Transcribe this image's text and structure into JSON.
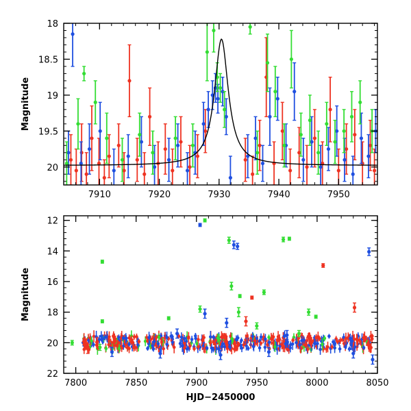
{
  "chart_data": [
    {
      "type": "scatter",
      "title": "",
      "xlabel": "",
      "ylabel": "Magnitude",
      "xlim": [
        7904,
        7956.5
      ],
      "ylim": [
        20.25,
        18.0
      ],
      "y_inverted": true,
      "grid": false,
      "x_ticks": [
        7910,
        7920,
        7930,
        7940,
        7950
      ],
      "y_ticks": [
        18,
        18.5,
        19,
        19.5,
        20
      ],
      "tick_labels_x": [
        "7910",
        "7920",
        "7930",
        "7940",
        "7950"
      ],
      "tick_labels_y": [
        "18",
        "18.5",
        "19",
        "19.5",
        "20"
      ],
      "series": [
        {
          "color": "#ee3322",
          "points": [
            [
              7905.2,
              19.9,
              0.35
            ],
            [
              7906.1,
              20.05,
              0.3
            ],
            [
              7907.0,
              19.8,
              0.4
            ],
            [
              7907.8,
              20.1,
              0.3
            ],
            [
              7908.7,
              19.6,
              0.45
            ],
            [
              7909.9,
              19.95,
              0.35
            ],
            [
              7910.8,
              20.15,
              0.25
            ],
            [
              7911.6,
              19.85,
              0.3
            ],
            [
              7913.2,
              19.7,
              0.3
            ],
            [
              7914.1,
              20.05,
              0.25
            ],
            [
              7915.0,
              18.8,
              0.5
            ],
            [
              7916.3,
              19.9,
              0.3
            ],
            [
              7917.5,
              20.1,
              0.3
            ],
            [
              7918.4,
              19.3,
              0.4
            ],
            [
              7919.8,
              19.95,
              0.3
            ],
            [
              7921.0,
              19.75,
              0.35
            ],
            [
              7922.2,
              20.05,
              0.3
            ],
            [
              7923.6,
              19.65,
              0.35
            ],
            [
              7925.1,
              20.0,
              0.3
            ],
            [
              7926.4,
              19.85,
              0.3
            ],
            [
              7927.7,
              19.5,
              0.3
            ],
            [
              7934.4,
              19.9,
              0.3
            ],
            [
              7935.6,
              20.1,
              0.25
            ],
            [
              7936.8,
              19.7,
              0.35
            ],
            [
              7937.9,
              18.75,
              0.55
            ],
            [
              7939.2,
              19.95,
              0.3
            ],
            [
              7940.6,
              19.5,
              0.4
            ],
            [
              7941.9,
              20.05,
              0.3
            ],
            [
              7943.4,
              19.8,
              0.35
            ],
            [
              7944.7,
              20.0,
              0.3
            ],
            [
              7946.0,
              19.6,
              0.4
            ],
            [
              7947.3,
              19.95,
              0.3
            ],
            [
              7948.6,
              19.2,
              0.45
            ],
            [
              7950.0,
              20.05,
              0.3
            ],
            [
              7951.3,
              19.75,
              0.35
            ],
            [
              7952.7,
              19.55,
              0.35
            ],
            [
              7954.0,
              19.95,
              0.3
            ],
            [
              7955.3,
              19.7,
              0.35
            ],
            [
              7956.0,
              20.05,
              0.3
            ]
          ]
        },
        {
          "color": "#1f4fe0",
          "points": [
            [
              7904.8,
              19.8,
              0.3
            ],
            [
              7905.5,
              18.15,
              0.45
            ],
            [
              7906.9,
              19.95,
              0.3
            ],
            [
              7908.3,
              19.75,
              0.35
            ],
            [
              7910.1,
              19.5,
              0.4
            ],
            [
              7912.4,
              20.05,
              0.3
            ],
            [
              7914.8,
              19.85,
              0.3
            ],
            [
              7917.0,
              19.65,
              0.35
            ],
            [
              7919.2,
              20.0,
              0.3
            ],
            [
              7921.6,
              19.9,
              0.3
            ],
            [
              7923.1,
              19.7,
              0.3
            ],
            [
              7924.7,
              20.05,
              0.25
            ],
            [
              7926.0,
              19.8,
              0.3
            ],
            [
              7927.4,
              19.4,
              0.3
            ],
            [
              7928.2,
              19.2,
              0.25
            ],
            [
              7928.9,
              19.0,
              0.2
            ],
            [
              7929.4,
              18.9,
              0.2
            ],
            [
              7929.8,
              19.05,
              0.2
            ],
            [
              7930.6,
              18.95,
              0.2
            ],
            [
              7931.2,
              19.3,
              0.25
            ],
            [
              7931.9,
              20.15,
              0.3
            ],
            [
              7934.8,
              19.85,
              0.3
            ],
            [
              7936.1,
              19.6,
              0.3
            ],
            [
              7937.3,
              19.95,
              0.25
            ],
            [
              7938.5,
              19.3,
              0.4
            ],
            [
              7939.8,
              19.05,
              0.3
            ],
            [
              7941.2,
              19.7,
              0.3
            ],
            [
              7942.6,
              18.95,
              0.4
            ],
            [
              7944.1,
              19.9,
              0.3
            ],
            [
              7945.5,
              19.65,
              0.35
            ],
            [
              7947.0,
              20.0,
              0.3
            ],
            [
              7948.3,
              19.75,
              0.3
            ],
            [
              7949.7,
              19.5,
              0.35
            ],
            [
              7951.0,
              19.9,
              0.3
            ],
            [
              7952.4,
              20.1,
              0.25
            ],
            [
              7953.8,
              19.6,
              0.35
            ],
            [
              7955.0,
              19.85,
              0.3
            ],
            [
              7956.2,
              19.5,
              0.3
            ]
          ]
        },
        {
          "color": "#33dd33",
          "points": [
            [
              7904.5,
              19.95,
              0.3
            ],
            [
              7906.4,
              19.4,
              0.35
            ],
            [
              7907.4,
              18.7,
              0.1
            ],
            [
              7909.3,
              19.1,
              0.3
            ],
            [
              7911.2,
              19.6,
              0.35
            ],
            [
              7913.8,
              19.9,
              0.3
            ],
            [
              7916.7,
              19.55,
              0.3
            ],
            [
              7918.9,
              19.8,
              0.3
            ],
            [
              7922.7,
              19.6,
              0.3
            ],
            [
              7925.6,
              19.7,
              0.3
            ],
            [
              7928.0,
              18.4,
              0.4
            ],
            [
              7929.1,
              18.1,
              0.3
            ],
            [
              7929.7,
              18.75,
              0.2
            ],
            [
              7930.2,
              18.9,
              0.2
            ],
            [
              7930.9,
              19.2,
              0.25
            ],
            [
              7935.2,
              18.05,
              0.1
            ],
            [
              7936.4,
              19.8,
              0.3
            ],
            [
              7938.1,
              18.55,
              0.4
            ],
            [
              7939.4,
              18.95,
              0.35
            ],
            [
              7940.9,
              19.7,
              0.3
            ],
            [
              7942.1,
              18.5,
              0.4
            ],
            [
              7943.7,
              19.55,
              0.3
            ],
            [
              7945.2,
              19.35,
              0.35
            ],
            [
              7946.6,
              19.8,
              0.3
            ],
            [
              7948.0,
              19.4,
              0.3
            ],
            [
              7949.4,
              19.65,
              0.3
            ],
            [
              7950.9,
              19.5,
              0.3
            ],
            [
              7952.2,
              19.3,
              0.35
            ],
            [
              7953.6,
              19.1,
              0.3
            ],
            [
              7955.6,
              19.5,
              0.3
            ]
          ]
        }
      ],
      "model_curve": {
        "color": "#000000",
        "baseline": 19.98,
        "peak_mag": 18.22,
        "peak_time": 7930.4,
        "width": 1.4
      }
    },
    {
      "type": "scatter",
      "title": "",
      "xlabel": "HJD−2450000",
      "ylabel": "Magnitude",
      "xlim": [
        7790,
        8050
      ],
      "ylim": [
        22.0,
        11.7
      ],
      "y_inverted": true,
      "grid": false,
      "x_ticks": [
        7800,
        7850,
        7900,
        7950,
        8000,
        8050
      ],
      "y_ticks": [
        12,
        14,
        16,
        18,
        20,
        22
      ],
      "tick_labels_x": [
        "7800",
        "7850",
        "7900",
        "7950",
        "8000",
        "8050"
      ],
      "tick_labels_y": [
        "12",
        "14",
        "16",
        "18",
        "20",
        "22"
      ],
      "band": {
        "x_start": 7806,
        "x_end": 8046,
        "mag": 20.0,
        "spread": 0.45
      },
      "series": [
        {
          "color": "#1f4fe0",
          "points": [
            [
              7903,
              12.3,
              0.1
            ],
            [
              7931,
              13.6,
              0.25
            ],
            [
              7934,
              13.7,
              0.2
            ],
            [
              8043,
              14.05,
              0.25
            ],
            [
              7907,
              18.1,
              0.3
            ],
            [
              7925,
              18.7,
              0.3
            ],
            [
              7830,
              20.6,
              0.3
            ],
            [
              7870,
              20.7,
              0.3
            ],
            [
              7920,
              20.8,
              0.3
            ],
            [
              7960,
              20.6,
              0.3
            ],
            [
              8030,
              20.7,
              0.3
            ],
            [
              8046,
              21.1,
              0.3
            ],
            [
              7884,
              19.4,
              0.3
            ],
            [
              7975,
              19.5,
              0.3
            ]
          ]
        },
        {
          "color": "#33dd33",
          "points": [
            [
              7907,
              12.0,
              0.1
            ],
            [
              7927,
              13.3,
              0.2
            ],
            [
              7972,
              13.25,
              0.15
            ],
            [
              7977,
              13.2,
              0.1
            ],
            [
              7822,
              14.7,
              0.1
            ],
            [
              7929,
              16.3,
              0.25
            ],
            [
              7936,
              16.95,
              0.1
            ],
            [
              7956,
              16.7,
              0.15
            ],
            [
              7903,
              17.8,
              0.2
            ],
            [
              7935,
              18.0,
              0.3
            ],
            [
              7877,
              18.4,
              0.1
            ],
            [
              7822,
              18.6,
              0.1
            ],
            [
              7993,
              18.0,
              0.2
            ],
            [
              7999,
              18.3,
              0.1
            ],
            [
              7797,
              20.0,
              0.15
            ],
            [
              7820,
              20.3,
              0.2
            ],
            [
              7950,
              18.9,
              0.2
            ],
            [
              7985,
              19.4,
              0.2
            ]
          ]
        },
        {
          "color": "#ee3322",
          "points": [
            [
              8005,
              14.95,
              0.12
            ],
            [
              7946,
              17.05,
              0.1
            ],
            [
              8031,
              17.7,
              0.3
            ],
            [
              7941,
              18.6,
              0.3
            ],
            [
              7810,
              20.4,
              0.3
            ]
          ]
        }
      ]
    }
  ]
}
